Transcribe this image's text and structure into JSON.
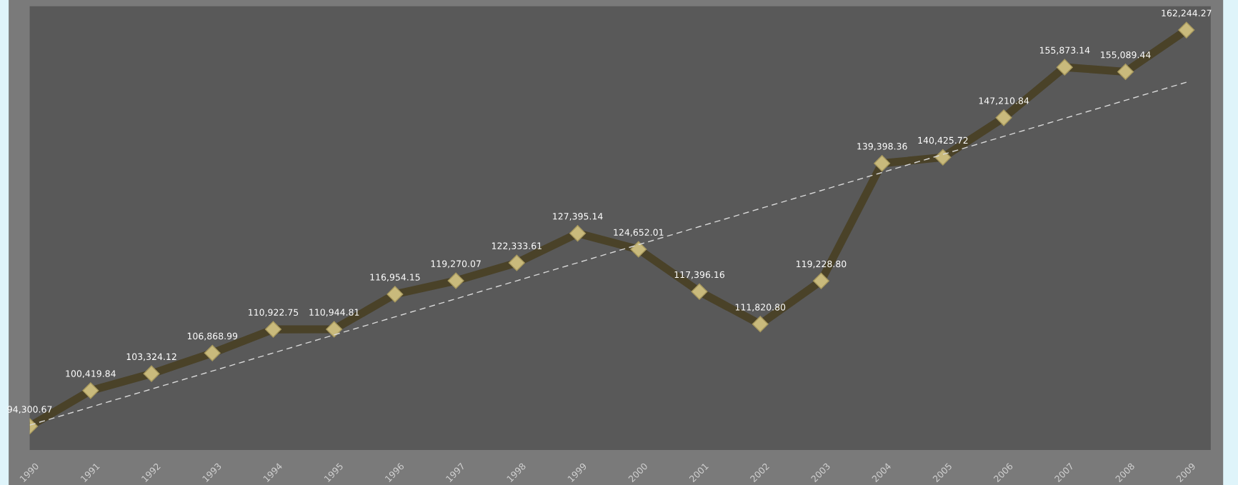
{
  "chart_data": {
    "type": "line",
    "categories": [
      "1990",
      "1991",
      "1992",
      "1993",
      "1994",
      "1995",
      "1996",
      "1997",
      "1998",
      "1999",
      "2000",
      "2001",
      "2002",
      "2003",
      "2004",
      "2005",
      "2006",
      "2007",
      "2008",
      "2009"
    ],
    "series": [
      {
        "color": "#4a4228",
        "marker": "diamond",
        "line_style": "solid",
        "values": [
          94300.67,
          100419.84,
          103324.12,
          106868.99,
          110922.75,
          110944.81,
          116954.15,
          119270.07,
          122333.61,
          127395.14,
          124652.01,
          117396.16,
          111820.8,
          119228.8,
          139398.36,
          140425.72,
          147210.84,
          155873.14,
          155089.44,
          162244.27
        ],
        "value_labels": [
          "94,300.67",
          "100,419.84",
          "103,324.12",
          "106,868.99",
          "110,922.75",
          "110,944.81",
          "116,954.15",
          "119,270.07",
          "122,333.61",
          "127,395.14",
          "124,652.01",
          "117,396.16",
          "111,820.80",
          "119,228.80",
          "139,398.36",
          "140,425.72",
          "147,210.84",
          "155,873.14",
          "155,089.44",
          "162,244.27"
        ]
      },
      {
        "color": "#d8d8d8",
        "marker": "none",
        "line_style": "dashed",
        "values": [
          94500,
          97595,
          100689,
          103784,
          106879,
          109974,
          113068,
          116163,
          119258,
          122353,
          125447,
          128542,
          131637,
          134732,
          137826,
          140921,
          144016,
          147111,
          150205,
          153300
        ]
      }
    ],
    "grid": false,
    "legend": false
  }
}
